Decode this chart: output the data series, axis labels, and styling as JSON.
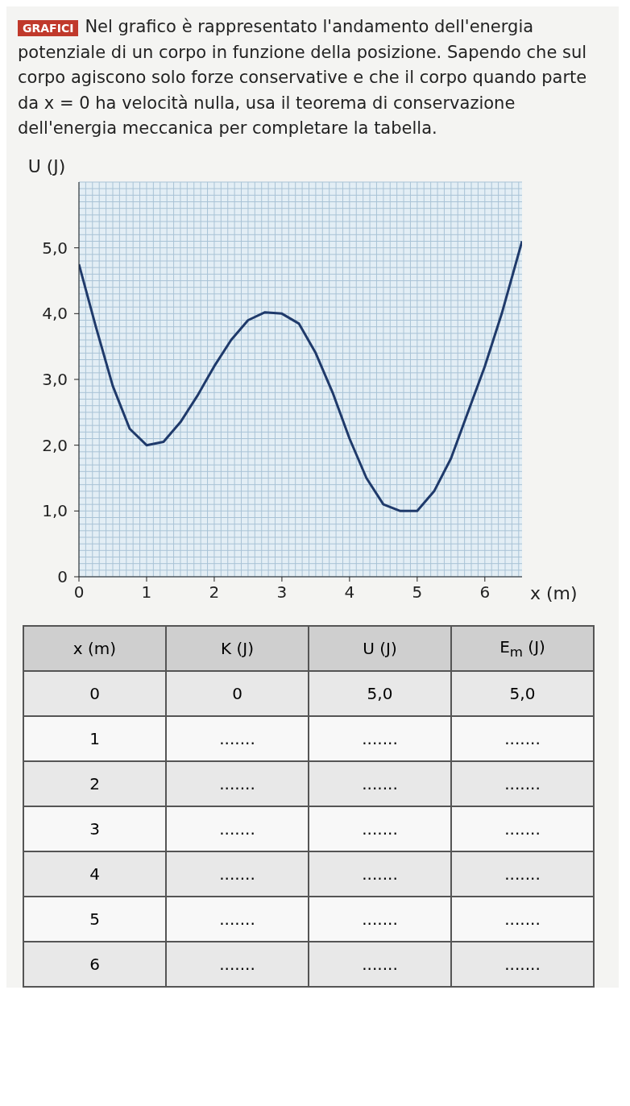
{
  "chart_data": {
    "type": "line",
    "subtitle": "GRAFICI",
    "title": "Nel grafico è rappresentato l'andamento dell'energia potenziale di un corpo in funzione della posizione. Sapendo che sul corpo agiscono solo forze conservative e che il corpo quando parte da x = 0 ha velocità nulla, usa il teorema di conservazione dell'energia meccanica per completare la tabella.",
    "xlabel": "x (m)",
    "ylabel": "U (J)",
    "x": [
      0,
      0.25,
      0.5,
      0.75,
      1,
      1.25,
      1.5,
      1.75,
      2,
      2.25,
      2.5,
      2.75,
      3,
      3.25,
      3.5,
      3.75,
      4,
      4.25,
      4.5,
      4.75,
      5,
      5.25,
      5.5,
      5.75,
      6,
      6.25,
      6.55
    ],
    "series": [
      {
        "color": "#1f3a6b",
        "values": [
          4.75,
          3.8,
          2.9,
          2.25,
          2.0,
          2.05,
          2.35,
          2.75,
          3.2,
          3.6,
          3.9,
          4.02,
          4.0,
          3.85,
          3.4,
          2.8,
          2.1,
          1.5,
          1.1,
          1.0,
          1.0,
          1.3,
          1.8,
          2.5,
          3.2,
          4.0,
          5.1
        ]
      }
    ],
    "xlim": [
      0,
      6.55
    ],
    "ylim": [
      0,
      6
    ],
    "xticks": [
      0,
      1,
      2,
      3,
      4,
      5,
      6
    ],
    "yticks": [
      0,
      {
        "value": 1,
        "label": "1,0"
      },
      {
        "value": 2,
        "label": "2,0"
      },
      {
        "value": 3,
        "label": "3,0"
      },
      {
        "value": 4,
        "label": "4,0"
      },
      {
        "value": 5,
        "label": "5,0"
      }
    ],
    "grid": true,
    "marker": "none",
    "line_style": "solid",
    "annotations": [
      "x (m)",
      "K (J)",
      "U (J)",
      "E$_{m}$ (J)",
      "0",
      "0",
      "5,0",
      "5,0",
      "1",
      ".......",
      ".......",
      ".......",
      "2",
      ".......",
      ".......",
      ".......",
      "3",
      ".......",
      ".......",
      ".......",
      "4",
      ".......",
      ".......",
      ".......",
      "5",
      ".......",
      ".......",
      ".......",
      "6",
      ".......",
      ".......",
      "......."
    ]
  }
}
